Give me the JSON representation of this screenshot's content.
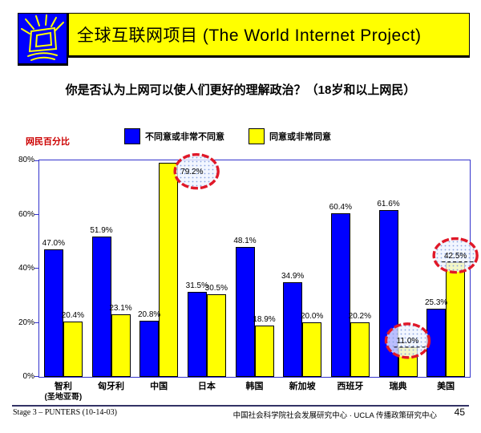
{
  "header": {
    "title": "全球互联网项目 (The World Internet Project)",
    "banner_color": "#FFFF00",
    "logo_bg_color": "#0000FF",
    "logo_icon": "shining-monitor-icon"
  },
  "question": "你是否认为上网可以使人们更好的理解政治？（18岁和以上网民）",
  "chart_data": {
    "type": "bar",
    "title": "",
    "ylabel": "网民百分比",
    "xlabel": "",
    "ylim": [
      0,
      80
    ],
    "ytick_step": 20,
    "yticks": [
      "0%",
      "20%",
      "40%",
      "60%",
      "80%"
    ],
    "grid": false,
    "legend_position": "top",
    "categories": [
      {
        "label": "智利",
        "sublabel": "(圣地亚哥)"
      },
      {
        "label": "匈牙利"
      },
      {
        "label": "中国"
      },
      {
        "label": "日本"
      },
      {
        "label": "韩国"
      },
      {
        "label": "新加坡"
      },
      {
        "label": "西班牙"
      },
      {
        "label": "瑞典"
      },
      {
        "label": "美国"
      }
    ],
    "series": [
      {
        "name": "不同意或非常不同意",
        "color": "#0000FF",
        "values": [
          47.0,
          51.9,
          20.8,
          31.5,
          48.1,
          34.9,
          60.4,
          61.6,
          25.3
        ]
      },
      {
        "name": "同意或非常同意",
        "color": "#FFFF00",
        "values": [
          20.4,
          23.1,
          79.2,
          30.5,
          18.9,
          20.0,
          20.2,
          11.0,
          42.5
        ]
      }
    ],
    "highlighted_points": [
      {
        "series": 1,
        "category": "中国",
        "value": 79.2
      },
      {
        "series": 1,
        "category": "瑞典",
        "value": 11.0
      },
      {
        "series": 1,
        "category": "美国",
        "value": 42.5
      }
    ],
    "annotation_style": {
      "ring_color": "#E01828",
      "dot_fill_color": "#88A2E0"
    }
  },
  "colors": {
    "axis": "#3333CC",
    "bar_border": "#000000",
    "ylabel_color": "#CC0000",
    "footer_line": "#333366"
  },
  "footer": {
    "left": "Stage 3 – PUNTERS (10-14-03)",
    "right": "中国社会科学院社会发展研究中心 · UCLA 传播政策研究中心",
    "page_number": "45"
  }
}
